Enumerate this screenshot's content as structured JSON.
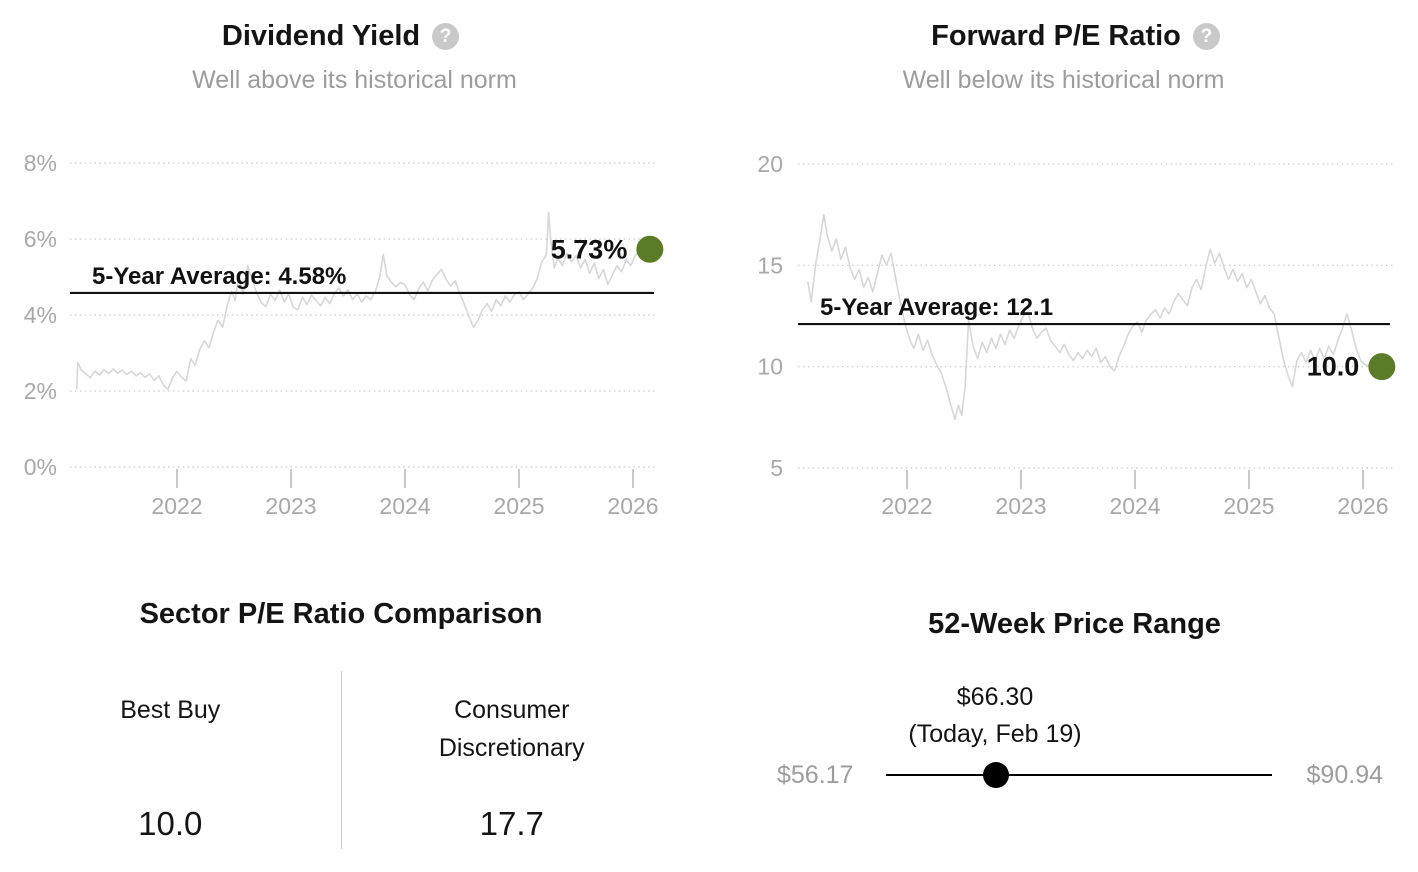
{
  "colors": {
    "accent_green": "#5a7c28",
    "title_text": "#141414",
    "subtitle_text": "#9c9c9c",
    "axis_text": "#a8a8a8",
    "series_line": "#d7d7d7",
    "grid_line": "#d3d3d3",
    "average_line": "#111111",
    "divider": "#cccccc",
    "help_icon_bg": "#c9c9c9",
    "slider_black": "#000000"
  },
  "icons": {
    "help_glyph": "?"
  },
  "panels": {
    "dividend_yield": {
      "title": "Dividend Yield",
      "subtitle": "Well above its historical norm"
    },
    "forward_pe": {
      "title": "Forward P/E Ratio",
      "subtitle": "Well below its historical norm"
    },
    "sector_comparison": {
      "title": "Sector P/E Ratio Comparison",
      "columns": [
        {
          "label": "Best Buy",
          "value": "10.0"
        },
        {
          "label": "Consumer Discretionary",
          "value": "17.7"
        }
      ]
    },
    "price_range": {
      "title": "52-Week Price Range",
      "current_price": "$66.30",
      "current_label": "(Today, Feb 19)",
      "low": "$56.17",
      "high": "$90.94",
      "position_pct": 28.4
    }
  },
  "chart_data": [
    {
      "type": "line",
      "title": "Dividend Yield",
      "subtitle": "Well above its historical norm",
      "ylim": [
        0,
        8
      ],
      "xlim": [
        2021.05,
        2026.25
      ],
      "grid": "dotted-horizontal",
      "y_ticks": [
        {
          "v": 8,
          "label": "8%"
        },
        {
          "v": 6,
          "label": "6%"
        },
        {
          "v": 4,
          "label": "4%"
        },
        {
          "v": 2,
          "label": "2%"
        },
        {
          "v": 0,
          "label": "0%"
        }
      ],
      "x_ticks": [
        {
          "v": 2022,
          "label": "2022"
        },
        {
          "v": 2023,
          "label": "2023"
        },
        {
          "v": 2024,
          "label": "2024"
        },
        {
          "v": 2025,
          "label": "2025"
        },
        {
          "v": 2026,
          "label": "2026"
        }
      ],
      "average": {
        "value": 4.58,
        "label": "5-Year Average: 4.58%"
      },
      "current": {
        "value": 5.73,
        "label": "5.73%"
      },
      "series": [
        [
          2021.12,
          2.05
        ],
        [
          2021.13,
          2.75
        ],
        [
          2021.16,
          2.55
        ],
        [
          2021.2,
          2.45
        ],
        [
          2021.24,
          2.35
        ],
        [
          2021.28,
          2.52
        ],
        [
          2021.32,
          2.42
        ],
        [
          2021.36,
          2.56
        ],
        [
          2021.4,
          2.46
        ],
        [
          2021.44,
          2.58
        ],
        [
          2021.48,
          2.47
        ],
        [
          2021.52,
          2.55
        ],
        [
          2021.56,
          2.44
        ],
        [
          2021.6,
          2.52
        ],
        [
          2021.64,
          2.4
        ],
        [
          2021.68,
          2.48
        ],
        [
          2021.72,
          2.36
        ],
        [
          2021.76,
          2.45
        ],
        [
          2021.8,
          2.28
        ],
        [
          2021.84,
          2.4
        ],
        [
          2021.88,
          2.16
        ],
        [
          2021.92,
          2.04
        ],
        [
          2021.96,
          2.34
        ],
        [
          2022.0,
          2.52
        ],
        [
          2022.04,
          2.36
        ],
        [
          2022.08,
          2.26
        ],
        [
          2022.12,
          2.85
        ],
        [
          2022.16,
          2.68
        ],
        [
          2022.2,
          3.1
        ],
        [
          2022.24,
          3.32
        ],
        [
          2022.28,
          3.14
        ],
        [
          2022.32,
          3.55
        ],
        [
          2022.36,
          3.86
        ],
        [
          2022.4,
          3.68
        ],
        [
          2022.44,
          4.25
        ],
        [
          2022.48,
          4.62
        ],
        [
          2022.51,
          4.38
        ],
        [
          2022.54,
          5.02
        ],
        [
          2022.58,
          4.55
        ],
        [
          2022.62,
          5.3
        ],
        [
          2022.66,
          4.92
        ],
        [
          2022.7,
          4.58
        ],
        [
          2022.74,
          4.32
        ],
        [
          2022.78,
          4.22
        ],
        [
          2022.82,
          4.55
        ],
        [
          2022.86,
          4.38
        ],
        [
          2022.9,
          4.66
        ],
        [
          2022.94,
          4.34
        ],
        [
          2022.98,
          4.56
        ],
        [
          2023.02,
          4.2
        ],
        [
          2023.06,
          4.14
        ],
        [
          2023.1,
          4.46
        ],
        [
          2023.14,
          4.28
        ],
        [
          2023.18,
          4.52
        ],
        [
          2023.22,
          4.38
        ],
        [
          2023.26,
          4.24
        ],
        [
          2023.3,
          4.46
        ],
        [
          2023.34,
          4.3
        ],
        [
          2023.38,
          4.56
        ],
        [
          2023.42,
          4.72
        ],
        [
          2023.46,
          4.5
        ],
        [
          2023.5,
          4.66
        ],
        [
          2023.54,
          4.4
        ],
        [
          2023.58,
          4.56
        ],
        [
          2023.62,
          4.34
        ],
        [
          2023.66,
          4.5
        ],
        [
          2023.7,
          4.4
        ],
        [
          2023.74,
          4.62
        ],
        [
          2023.78,
          5.02
        ],
        [
          2023.81,
          5.6
        ],
        [
          2023.84,
          5.04
        ],
        [
          2023.88,
          4.86
        ],
        [
          2023.92,
          4.74
        ],
        [
          2023.96,
          4.86
        ],
        [
          2024.0,
          4.8
        ],
        [
          2024.04,
          4.54
        ],
        [
          2024.08,
          4.4
        ],
        [
          2024.12,
          4.7
        ],
        [
          2024.16,
          4.86
        ],
        [
          2024.2,
          4.64
        ],
        [
          2024.24,
          4.92
        ],
        [
          2024.28,
          5.06
        ],
        [
          2024.32,
          5.2
        ],
        [
          2024.36,
          4.94
        ],
        [
          2024.4,
          4.76
        ],
        [
          2024.44,
          4.9
        ],
        [
          2024.48,
          4.58
        ],
        [
          2024.52,
          4.28
        ],
        [
          2024.56,
          3.98
        ],
        [
          2024.6,
          3.68
        ],
        [
          2024.64,
          3.86
        ],
        [
          2024.68,
          4.14
        ],
        [
          2024.72,
          4.3
        ],
        [
          2024.76,
          4.1
        ],
        [
          2024.8,
          4.4
        ],
        [
          2024.84,
          4.24
        ],
        [
          2024.88,
          4.5
        ],
        [
          2024.92,
          4.34
        ],
        [
          2024.96,
          4.54
        ],
        [
          2025.0,
          4.6
        ],
        [
          2025.04,
          4.4
        ],
        [
          2025.08,
          4.56
        ],
        [
          2025.12,
          4.7
        ],
        [
          2025.16,
          4.96
        ],
        [
          2025.2,
          5.4
        ],
        [
          2025.24,
          5.58
        ],
        [
          2025.26,
          6.7
        ],
        [
          2025.28,
          5.92
        ],
        [
          2025.31,
          5.24
        ],
        [
          2025.34,
          5.5
        ],
        [
          2025.38,
          5.3
        ],
        [
          2025.42,
          5.62
        ],
        [
          2025.46,
          5.4
        ],
        [
          2025.5,
          5.56
        ],
        [
          2025.54,
          5.24
        ],
        [
          2025.58,
          5.46
        ],
        [
          2025.62,
          5.1
        ],
        [
          2025.66,
          5.36
        ],
        [
          2025.7,
          4.96
        ],
        [
          2025.74,
          5.2
        ],
        [
          2025.78,
          4.8
        ],
        [
          2025.82,
          5.06
        ],
        [
          2025.86,
          5.3
        ],
        [
          2025.9,
          5.14
        ],
        [
          2025.94,
          5.46
        ],
        [
          2025.98,
          5.3
        ],
        [
          2026.02,
          5.56
        ],
        [
          2026.06,
          5.73
        ]
      ]
    },
    {
      "type": "line",
      "title": "Forward P/E Ratio",
      "subtitle": "Well below its historical norm",
      "ylim": [
        5,
        20
      ],
      "xlim": [
        2021.05,
        2026.25
      ],
      "grid": "dotted-horizontal",
      "y_ticks": [
        {
          "v": 20,
          "label": "20"
        },
        {
          "v": 15,
          "label": "15"
        },
        {
          "v": 10,
          "label": "10"
        },
        {
          "v": 5,
          "label": "5"
        }
      ],
      "x_ticks": [
        {
          "v": 2022,
          "label": "2022"
        },
        {
          "v": 2023,
          "label": "2023"
        },
        {
          "v": 2024,
          "label": "2024"
        },
        {
          "v": 2025,
          "label": "2025"
        },
        {
          "v": 2026,
          "label": "2026"
        }
      ],
      "average": {
        "value": 12.1,
        "label": "5-Year Average: 12.1"
      },
      "current": {
        "value": 10.0,
        "label": "10.0"
      },
      "series": [
        [
          2021.13,
          14.2
        ],
        [
          2021.16,
          13.2
        ],
        [
          2021.2,
          15.1
        ],
        [
          2021.24,
          16.4
        ],
        [
          2021.27,
          17.5
        ],
        [
          2021.3,
          16.5
        ],
        [
          2021.34,
          15.7
        ],
        [
          2021.38,
          16.3
        ],
        [
          2021.42,
          15.3
        ],
        [
          2021.46,
          15.9
        ],
        [
          2021.5,
          14.9
        ],
        [
          2021.54,
          14.3
        ],
        [
          2021.58,
          14.8
        ],
        [
          2021.62,
          13.9
        ],
        [
          2021.66,
          14.4
        ],
        [
          2021.7,
          13.7
        ],
        [
          2021.74,
          14.6
        ],
        [
          2021.78,
          15.5
        ],
        [
          2021.82,
          15.0
        ],
        [
          2021.86,
          15.6
        ],
        [
          2021.9,
          14.4
        ],
        [
          2021.94,
          13.2
        ],
        [
          2021.98,
          12.2
        ],
        [
          2022.02,
          11.4
        ],
        [
          2022.06,
          10.9
        ],
        [
          2022.1,
          11.6
        ],
        [
          2022.14,
          10.8
        ],
        [
          2022.18,
          11.3
        ],
        [
          2022.22,
          10.6
        ],
        [
          2022.26,
          10.1
        ],
        [
          2022.3,
          9.7
        ],
        [
          2022.34,
          9.0
        ],
        [
          2022.38,
          8.2
        ],
        [
          2022.42,
          7.4
        ],
        [
          2022.45,
          8.1
        ],
        [
          2022.48,
          7.6
        ],
        [
          2022.51,
          9.0
        ],
        [
          2022.54,
          12.3
        ],
        [
          2022.58,
          11.0
        ],
        [
          2022.62,
          10.4
        ],
        [
          2022.66,
          11.2
        ],
        [
          2022.7,
          10.7
        ],
        [
          2022.74,
          11.4
        ],
        [
          2022.78,
          10.9
        ],
        [
          2022.82,
          11.6
        ],
        [
          2022.86,
          11.1
        ],
        [
          2022.9,
          11.8
        ],
        [
          2022.94,
          11.4
        ],
        [
          2022.98,
          12.0
        ],
        [
          2023.02,
          12.5
        ],
        [
          2023.06,
          12.7
        ],
        [
          2023.1,
          11.9
        ],
        [
          2023.14,
          11.4
        ],
        [
          2023.18,
          11.7
        ],
        [
          2023.22,
          11.9
        ],
        [
          2023.26,
          11.3
        ],
        [
          2023.3,
          11.0
        ],
        [
          2023.34,
          10.7
        ],
        [
          2023.38,
          11.1
        ],
        [
          2023.42,
          10.6
        ],
        [
          2023.46,
          10.3
        ],
        [
          2023.5,
          10.7
        ],
        [
          2023.54,
          10.4
        ],
        [
          2023.58,
          10.8
        ],
        [
          2023.62,
          10.5
        ],
        [
          2023.66,
          10.9
        ],
        [
          2023.7,
          10.2
        ],
        [
          2023.74,
          10.5
        ],
        [
          2023.78,
          10.0
        ],
        [
          2023.82,
          9.8
        ],
        [
          2023.86,
          10.5
        ],
        [
          2023.9,
          11.0
        ],
        [
          2023.94,
          11.6
        ],
        [
          2023.98,
          12.0
        ],
        [
          2024.02,
          12.2
        ],
        [
          2024.06,
          11.7
        ],
        [
          2024.1,
          12.3
        ],
        [
          2024.14,
          12.6
        ],
        [
          2024.18,
          12.8
        ],
        [
          2024.22,
          12.4
        ],
        [
          2024.26,
          12.9
        ],
        [
          2024.3,
          12.6
        ],
        [
          2024.34,
          13.2
        ],
        [
          2024.38,
          13.6
        ],
        [
          2024.42,
          13.3
        ],
        [
          2024.46,
          13.0
        ],
        [
          2024.5,
          13.9
        ],
        [
          2024.54,
          14.3
        ],
        [
          2024.58,
          13.8
        ],
        [
          2024.62,
          14.9
        ],
        [
          2024.66,
          15.8
        ],
        [
          2024.7,
          15.1
        ],
        [
          2024.74,
          15.6
        ],
        [
          2024.78,
          14.9
        ],
        [
          2024.82,
          14.3
        ],
        [
          2024.86,
          14.8
        ],
        [
          2024.9,
          14.2
        ],
        [
          2024.94,
          14.6
        ],
        [
          2024.98,
          13.9
        ],
        [
          2025.02,
          14.3
        ],
        [
          2025.06,
          13.7
        ],
        [
          2025.1,
          13.1
        ],
        [
          2025.14,
          13.5
        ],
        [
          2025.18,
          12.9
        ],
        [
          2025.22,
          12.6
        ],
        [
          2025.26,
          11.5
        ],
        [
          2025.3,
          10.4
        ],
        [
          2025.34,
          9.6
        ],
        [
          2025.38,
          9.0
        ],
        [
          2025.42,
          10.3
        ],
        [
          2025.46,
          10.7
        ],
        [
          2025.5,
          10.2
        ],
        [
          2025.54,
          10.8
        ],
        [
          2025.58,
          10.3
        ],
        [
          2025.62,
          10.9
        ],
        [
          2025.66,
          10.4
        ],
        [
          2025.7,
          11.0
        ],
        [
          2025.74,
          10.6
        ],
        [
          2025.78,
          11.3
        ],
        [
          2025.82,
          11.9
        ],
        [
          2025.86,
          12.6
        ],
        [
          2025.9,
          11.8
        ],
        [
          2025.94,
          10.9
        ],
        [
          2025.98,
          10.3
        ],
        [
          2026.02,
          10.1
        ],
        [
          2026.06,
          10.0
        ]
      ]
    },
    {
      "type": "table",
      "title": "Sector P/E Ratio Comparison",
      "categories": [
        "Best Buy",
        "Consumer Discretionary"
      ],
      "values": [
        10.0,
        17.7
      ]
    },
    {
      "type": "range",
      "title": "52-Week Price Range",
      "low": 56.17,
      "high": 90.94,
      "current": 66.3,
      "current_label": "(Today, Feb 19)"
    }
  ]
}
